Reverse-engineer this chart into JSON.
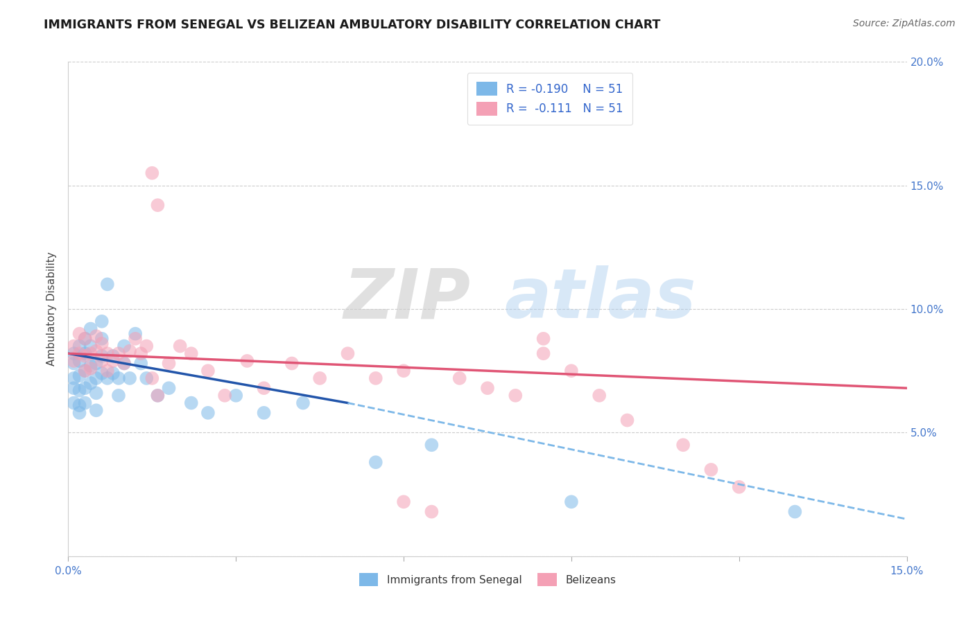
{
  "title": "IMMIGRANTS FROM SENEGAL VS BELIZEAN AMBULATORY DISABILITY CORRELATION CHART",
  "source": "Source: ZipAtlas.com",
  "ylabel": "Ambulatory Disability",
  "xlim": [
    0.0,
    0.15
  ],
  "ylim": [
    0.0,
    0.2
  ],
  "blue_color": "#7db8e8",
  "pink_color": "#f4a0b5",
  "trend_blue_solid": "#2255aa",
  "trend_blue_dash": "#7db8e8",
  "trend_pink": "#e05575",
  "watermark_zip": "ZIP",
  "watermark_atlas": "atlas",
  "background_color": "#ffffff",
  "grid_color": "#cccccc",
  "legend_r1": "R = -0.190",
  "legend_n1": "N = 51",
  "legend_r2": "R =  -0.111",
  "legend_n2": "N = 51",
  "blue_x": [
    0.001,
    0.001,
    0.001,
    0.001,
    0.001,
    0.002,
    0.002,
    0.002,
    0.002,
    0.002,
    0.002,
    0.003,
    0.003,
    0.003,
    0.003,
    0.003,
    0.004,
    0.004,
    0.004,
    0.004,
    0.005,
    0.005,
    0.005,
    0.005,
    0.006,
    0.006,
    0.006,
    0.006,
    0.007,
    0.007,
    0.008,
    0.008,
    0.009,
    0.009,
    0.01,
    0.01,
    0.011,
    0.012,
    0.013,
    0.014,
    0.016,
    0.018,
    0.022,
    0.025,
    0.03,
    0.035,
    0.042,
    0.055,
    0.065,
    0.09,
    0.13
  ],
  "blue_y": [
    0.078,
    0.082,
    0.072,
    0.068,
    0.062,
    0.085,
    0.079,
    0.073,
    0.067,
    0.061,
    0.058,
    0.088,
    0.082,
    0.075,
    0.068,
    0.062,
    0.092,
    0.085,
    0.077,
    0.07,
    0.078,
    0.072,
    0.066,
    0.059,
    0.095,
    0.088,
    0.081,
    0.074,
    0.11,
    0.072,
    0.081,
    0.074,
    0.072,
    0.065,
    0.085,
    0.078,
    0.072,
    0.09,
    0.078,
    0.072,
    0.065,
    0.068,
    0.062,
    0.058,
    0.065,
    0.058,
    0.062,
    0.038,
    0.045,
    0.022,
    0.018
  ],
  "pink_x": [
    0.001,
    0.001,
    0.002,
    0.002,
    0.003,
    0.003,
    0.003,
    0.004,
    0.004,
    0.005,
    0.005,
    0.006,
    0.006,
    0.007,
    0.007,
    0.008,
    0.009,
    0.01,
    0.011,
    0.012,
    0.013,
    0.014,
    0.015,
    0.016,
    0.018,
    0.02,
    0.022,
    0.025,
    0.028,
    0.032,
    0.035,
    0.04,
    0.045,
    0.05,
    0.055,
    0.07,
    0.075,
    0.08,
    0.085,
    0.09,
    0.095,
    0.1,
    0.11,
    0.115,
    0.12,
    0.015,
    0.016,
    0.06,
    0.085,
    0.06,
    0.065
  ],
  "pink_y": [
    0.085,
    0.079,
    0.09,
    0.082,
    0.088,
    0.081,
    0.075,
    0.082,
    0.076,
    0.089,
    0.083,
    0.086,
    0.079,
    0.082,
    0.075,
    0.079,
    0.082,
    0.078,
    0.083,
    0.088,
    0.082,
    0.085,
    0.155,
    0.142,
    0.078,
    0.085,
    0.082,
    0.075,
    0.065,
    0.079,
    0.068,
    0.078,
    0.072,
    0.082,
    0.072,
    0.072,
    0.068,
    0.065,
    0.088,
    0.075,
    0.065,
    0.055,
    0.045,
    0.035,
    0.028,
    0.072,
    0.065,
    0.075,
    0.082,
    0.022,
    0.018
  ],
  "blue_trend_x0": 0.0,
  "blue_trend_y0": 0.082,
  "blue_trend_x1": 0.05,
  "blue_trend_y1": 0.062,
  "blue_trend_x2": 0.15,
  "blue_trend_y2": 0.015,
  "pink_trend_x0": 0.0,
  "pink_trend_y0": 0.082,
  "pink_trend_x1": 0.15,
  "pink_trend_y1": 0.068
}
